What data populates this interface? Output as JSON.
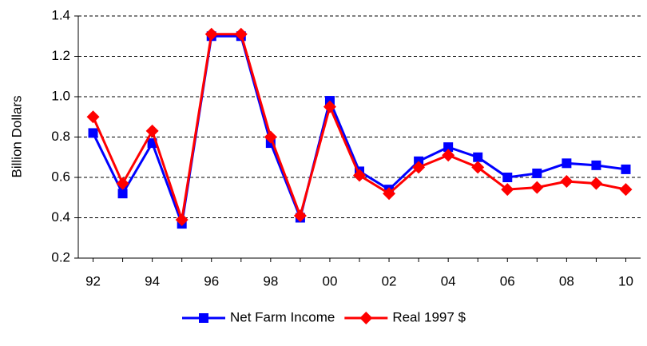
{
  "chart_data": {
    "type": "line",
    "y_label": "Billion Dollars",
    "categories": [
      "92",
      null,
      "94",
      null,
      "96",
      null,
      "98",
      null,
      "00",
      null,
      "02",
      null,
      "04",
      null,
      "06",
      null,
      "08",
      null,
      "10"
    ],
    "series": [
      {
        "name": "Net Farm Income",
        "color": "#0000ff",
        "marker": "square",
        "values": [
          0.82,
          0.52,
          0.77,
          0.37,
          1.3,
          1.3,
          0.77,
          0.4,
          0.98,
          0.63,
          0.54,
          0.68,
          0.75,
          0.7,
          0.6,
          0.62,
          0.67,
          0.66,
          0.64
        ]
      },
      {
        "name": "Real 1997 $",
        "color": "#ff0000",
        "marker": "diamond",
        "values": [
          0.9,
          0.57,
          0.83,
          0.39,
          1.31,
          1.31,
          0.8,
          0.41,
          0.95,
          0.61,
          0.52,
          0.65,
          0.71,
          0.65,
          0.54,
          0.55,
          0.58,
          0.57,
          0.54
        ]
      }
    ],
    "ylim": [
      0.2,
      1.4
    ],
    "yticks": [
      0.2,
      0.4,
      0.6,
      0.8,
      {
        "value": 1,
        "label": "1.0"
      },
      1.2,
      1.4
    ],
    "grid": true,
    "legend": "bottom"
  }
}
